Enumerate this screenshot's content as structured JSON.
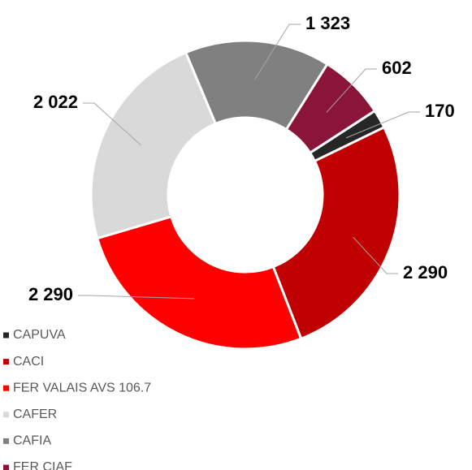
{
  "chart_data": {
    "type": "donut",
    "categories": [
      "CAPUVA",
      "CACI",
      "FER VALAIS AVS 106.7",
      "CAFER",
      "CAFIA",
      "FER CIAF"
    ],
    "values": [
      170,
      2290,
      2290,
      2022,
      1323,
      602
    ],
    "value_labels": [
      "170",
      "2 290",
      "2 290",
      "2 022",
      "1 323",
      "602"
    ],
    "colors": [
      "#262626",
      "#c00000",
      "#ff0000",
      "#d9d9d9",
      "#808080",
      "#8b1538"
    ],
    "legend": "bottom-left"
  }
}
